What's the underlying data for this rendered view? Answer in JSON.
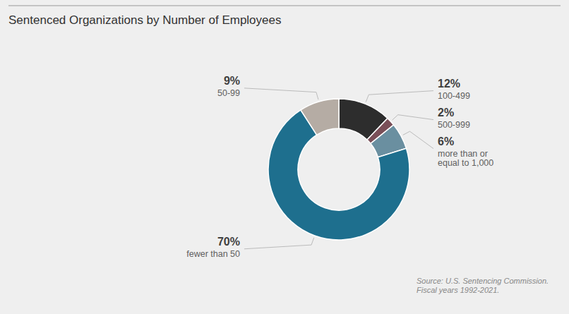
{
  "chart_data": {
    "type": "donut",
    "title": "Sentenced Organizations by Number of Employees",
    "categories": [
      "100-499",
      "500-999",
      "more than or\nequal to 1,000",
      "fewer than 50",
      "50-99"
    ],
    "values": [
      12,
      2,
      6,
      70,
      9
    ],
    "value_labels": [
      "12%",
      "2%",
      "6%",
      "70%",
      "9%"
    ],
    "colors": [
      "#2d2d2d",
      "#7a4f58",
      "#6a8fa0",
      "#1e6f8e",
      "#b5aca4"
    ],
    "data_labels": true,
    "annotations": [
      "Source: U.S. Sentencing Commission.\nFiscal years 1992-2021."
    ]
  }
}
